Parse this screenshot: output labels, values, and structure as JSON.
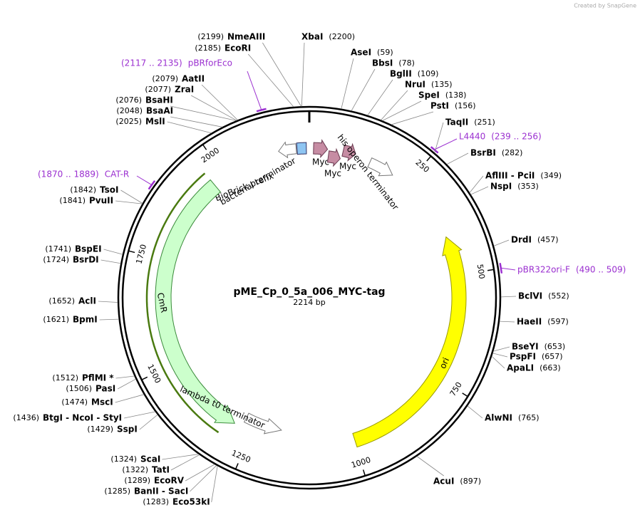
{
  "watermark": "Created by SnapGene",
  "map": {
    "name": "pME_Cp_0_5a_006_MYC-tag",
    "length": 2214,
    "length_label": "2214 bp"
  },
  "sites": [
    {
      "name": "NmeAIII",
      "position": 2199,
      "position_label": "(2199)"
    },
    {
      "name": "EcoRI",
      "position": 2185,
      "position_label": "(2185)"
    },
    {
      "name": "XbaI",
      "position": 2200,
      "position_label": "(2200)"
    },
    {
      "name": "AseI",
      "position": 59,
      "position_label": "(59)"
    },
    {
      "name": "BbsI",
      "position": 78,
      "position_label": "(78)"
    },
    {
      "name": "BglII",
      "position": 109,
      "position_label": "(109)"
    },
    {
      "name": "NruI",
      "position": 135,
      "position_label": "(135)"
    },
    {
      "name": "SpeI",
      "position": 138,
      "position_label": "(138)"
    },
    {
      "name": "PstI",
      "position": 156,
      "position_label": "(156)"
    },
    {
      "name": "TaqII",
      "position": 251,
      "position_label": "(251)"
    },
    {
      "name": "BsrBI",
      "position": 282,
      "position_label": "(282)"
    },
    {
      "name": "AflIII - PciI",
      "position": 349,
      "position_label": "(349)"
    },
    {
      "name": "NspI",
      "position": 353,
      "position_label": "(353)"
    },
    {
      "name": "DrdI",
      "position": 457,
      "position_label": "(457)"
    },
    {
      "name": "BclVI",
      "position": 552,
      "position_label": "(552)"
    },
    {
      "name": "HaeII",
      "position": 597,
      "position_label": "(597)"
    },
    {
      "name": "BseYI",
      "position": 653,
      "position_label": "(653)"
    },
    {
      "name": "PspFI",
      "position": 657,
      "position_label": "(657)"
    },
    {
      "name": "ApaLI",
      "position": 663,
      "position_label": "(663)"
    },
    {
      "name": "AlwNI",
      "position": 765,
      "position_label": "(765)"
    },
    {
      "name": "AcuI",
      "position": 897,
      "position_label": "(897)"
    },
    {
      "name": "AatII",
      "position": 2079,
      "position_label": "(2079)"
    },
    {
      "name": "ZraI",
      "position": 2077,
      "position_label": "(2077)"
    },
    {
      "name": "BsaHI",
      "position": 2076,
      "position_label": "(2076)"
    },
    {
      "name": "BsaAI",
      "position": 2048,
      "position_label": "(2048)"
    },
    {
      "name": "MslI",
      "position": 2025,
      "position_label": "(2025)"
    },
    {
      "name": "TsoI",
      "position": 1842,
      "position_label": "(1842)"
    },
    {
      "name": "PvuII",
      "position": 1841,
      "position_label": "(1841)"
    },
    {
      "name": "BspEI",
      "position": 1741,
      "position_label": "(1741)"
    },
    {
      "name": "BsrDI",
      "position": 1724,
      "position_label": "(1724)"
    },
    {
      "name": "AclI",
      "position": 1652,
      "position_label": "(1652)"
    },
    {
      "name": "BpmI",
      "position": 1621,
      "position_label": "(1621)"
    },
    {
      "name": "PflMI *",
      "position": 1512,
      "position_label": "(1512)"
    },
    {
      "name": "PasI",
      "position": 1506,
      "position_label": "(1506)"
    },
    {
      "name": "MscI",
      "position": 1474,
      "position_label": "(1474)"
    },
    {
      "name": "BtgI - NcoI - StyI",
      "position": 1436,
      "position_label": "(1436)"
    },
    {
      "name": "SspI",
      "position": 1429,
      "position_label": "(1429)"
    },
    {
      "name": "ScaI",
      "position": 1324,
      "position_label": "(1324)"
    },
    {
      "name": "TatI",
      "position": 1322,
      "position_label": "(1322)"
    },
    {
      "name": "EcoRV",
      "position": 1289,
      "position_label": "(1289)"
    },
    {
      "name": "BanII - SacI",
      "position": 1285,
      "position_label": "(1285)"
    },
    {
      "name": "Eco53kI",
      "position": 1283,
      "position_label": "(1283)"
    }
  ],
  "primers": [
    {
      "name": "pBRforEco",
      "start": 2117,
      "end": 2135,
      "range_label": "(2117 .. 2135)"
    },
    {
      "name": "L4440",
      "start": 239,
      "end": 256,
      "range_label": "(239 .. 256)"
    },
    {
      "name": "CAT-R",
      "start": 1870,
      "end": 1889,
      "range_label": "(1870 .. 1889)"
    },
    {
      "name": "pBR322ori-F",
      "start": 490,
      "end": 509,
      "range_label": "(490 .. 509)"
    }
  ],
  "features": [
    {
      "name": "bacterial terminator",
      "start": 2141,
      "end": 2183,
      "direction": "reverse",
      "color": "#ffffff"
    },
    {
      "name": "BioBrick prefix",
      "start": 2185,
      "end": 2207,
      "direction": "none",
      "color": "#8ec5f2"
    },
    {
      "name": "Myc",
      "start": 10,
      "end": 43,
      "direction": "forward",
      "color": "#c68ca3"
    },
    {
      "name": "Myc",
      "start": 47,
      "end": 77,
      "direction": "forward",
      "color": "#c68ca3"
    },
    {
      "name": "Myc",
      "start": 80,
      "end": 110,
      "direction": "forward",
      "color": "#c68ca3"
    },
    {
      "name": "his operon terminator",
      "start": 148,
      "end": 210,
      "direction": "forward",
      "color": "#ffffff"
    },
    {
      "name": "ori",
      "start": 406,
      "end": 998,
      "direction": "reverse",
      "color": "#ffff00"
    },
    {
      "name": "CmR",
      "start": 1296,
      "end": 1968,
      "direction": "reverse",
      "color": "#ccffcc"
    },
    {
      "name": "lambda t0 terminator",
      "start": 1180,
      "end": 1277,
      "direction": "reverse",
      "color": "#ffffff"
    }
  ],
  "ruler": {
    "ticks": [
      250,
      500,
      750,
      1000,
      1250,
      1500,
      1750,
      2000
    ]
  }
}
